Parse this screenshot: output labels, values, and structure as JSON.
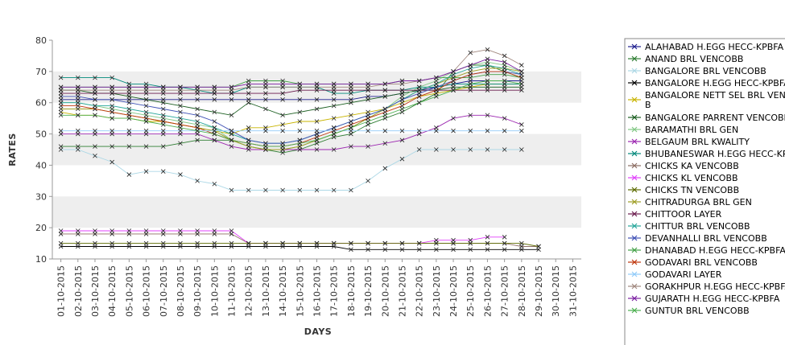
{
  "chart_data": {
    "type": "line",
    "xlabel": "DAYS",
    "ylabel": "RATES",
    "ylim": [
      10,
      80
    ],
    "yticks": [
      "10",
      "20",
      "30",
      "40",
      "50",
      "60",
      "70",
      "80"
    ],
    "grid": "alternating horizontal bands",
    "legend_placement": "right",
    "categories": [
      "01-10-2015",
      "02-10-2015",
      "03-10-2015",
      "04-10-2015",
      "05-10-2015",
      "06-10-2015",
      "07-10-2015",
      "08-10-2015",
      "09-10-2015",
      "10-10-2015",
      "11-10-2015",
      "12-10-2015",
      "13-10-2015",
      "14-10-2015",
      "15-10-2015",
      "16-10-2015",
      "17-10-2015",
      "18-10-2015",
      "19-10-2015",
      "20-10-2015",
      "21-10-2015",
      "22-10-2015",
      "23-10-2015",
      "24-10-2015",
      "25-10-2015",
      "26-10-2015",
      "27-10-2015",
      "28-10-2015",
      "29-10-2015",
      "30-10-2015",
      "31-10-2015"
    ],
    "series": [
      {
        "name": "ALAHABAD H.EGG HECC-KPBFA",
        "color": "#1f1f8f",
        "values": [
          61,
          61,
          61,
          61,
          61,
          61,
          61,
          61,
          61,
          61,
          61,
          61,
          61,
          61,
          61,
          61,
          61,
          61,
          62,
          62,
          63,
          64,
          65,
          66,
          67,
          67,
          67,
          67,
          null,
          null,
          null
        ]
      },
      {
        "name": "ANAND BRL VENCOBB",
        "color": "#2e7d32",
        "values": [
          46,
          46,
          46,
          46,
          46,
          46,
          46,
          47,
          48,
          48,
          48,
          46,
          45,
          44,
          45,
          47,
          49,
          50,
          53,
          55,
          57,
          60,
          63,
          70,
          72,
          72,
          70,
          68,
          null,
          null,
          null
        ]
      },
      {
        "name": "BANGALORE BRL VENCOBB",
        "color": "#add8e6",
        "values": [
          45,
          45,
          43,
          41,
          37,
          38,
          38,
          37,
          35,
          34,
          32,
          32,
          32,
          32,
          32,
          32,
          32,
          32,
          35,
          39,
          42,
          45,
          45,
          45,
          45,
          45,
          45,
          45,
          null,
          null,
          null
        ]
      },
      {
        "name": "BANGALORE H.EGG HECC-KPBFA",
        "color": "#000000",
        "values": [
          14,
          14,
          14,
          14,
          14,
          14,
          14,
          14,
          14,
          14,
          14,
          14,
          14,
          14,
          14,
          14,
          14,
          13,
          13,
          13,
          13,
          13,
          13,
          13,
          13,
          13,
          13,
          13,
          13,
          null,
          null
        ]
      },
      {
        "name": "BANGALORE NETT SEL BRL VENCOBB",
        "color": "#c8b400",
        "values": [
          57,
          56,
          56,
          55,
          55,
          54,
          54,
          53,
          52,
          51,
          50,
          52,
          52,
          53,
          54,
          54,
          55,
          56,
          57,
          58,
          60,
          62,
          63,
          64,
          65,
          66,
          66,
          66,
          null,
          null,
          null
        ]
      },
      {
        "name": "BANGALORE PARRENT VENCOBB",
        "color": "#1b5e20",
        "values": [
          64,
          64,
          63,
          63,
          62,
          61,
          60,
          59,
          58,
          57,
          56,
          60,
          58,
          56,
          57,
          58,
          59,
          60,
          61,
          62,
          63,
          64,
          64,
          65,
          65,
          65,
          65,
          65,
          null,
          null,
          null
        ]
      },
      {
        "name": "BARAMATHI BRL GEN",
        "color": "#81c784",
        "values": [
          60,
          60,
          59,
          58,
          57,
          56,
          55,
          54,
          53,
          52,
          48,
          46,
          45,
          45,
          46,
          48,
          50,
          52,
          55,
          58,
          62,
          65,
          67,
          70,
          72,
          73,
          72,
          70,
          null,
          null,
          null
        ]
      },
      {
        "name": "BELGAUM BRL KWALITY",
        "color": "#9c27b0",
        "values": [
          50,
          50,
          50,
          50,
          50,
          50,
          50,
          50,
          50,
          48,
          46,
          45,
          45,
          45,
          45,
          45,
          45,
          46,
          46,
          47,
          48,
          50,
          52,
          55,
          56,
          56,
          55,
          53,
          null,
          null,
          null
        ]
      },
      {
        "name": "BHUBANESWAR H.EGG HECC-KPBFA",
        "color": "#00897b",
        "values": [
          68,
          68,
          68,
          68,
          66,
          66,
          65,
          65,
          64,
          63,
          63,
          65,
          65,
          65,
          65,
          65,
          63,
          63,
          64,
          64,
          64,
          65,
          65,
          66,
          66,
          66,
          66,
          66,
          null,
          null,
          null
        ]
      },
      {
        "name": "CHICKS KA VENCOBB",
        "color": "#8d6e63",
        "values": [
          18,
          18,
          18,
          18,
          18,
          18,
          18,
          18,
          18,
          18,
          18,
          15,
          15,
          15,
          15,
          15,
          15,
          15,
          15,
          15,
          15,
          15,
          15,
          15,
          15,
          15,
          15,
          14,
          14,
          null,
          null
        ]
      },
      {
        "name": "CHICKS KL VENCOBB",
        "color": "#e040fb",
        "values": [
          19,
          19,
          19,
          19,
          19,
          19,
          19,
          19,
          19,
          19,
          19,
          15,
          15,
          15,
          15,
          15,
          15,
          15,
          15,
          15,
          15,
          15,
          16,
          16,
          16,
          17,
          17,
          null,
          null,
          null,
          null
        ]
      },
      {
        "name": "CHICKS TN VENCOBB",
        "color": "#5d6b00",
        "values": [
          15,
          15,
          15,
          15,
          15,
          15,
          15,
          15,
          15,
          15,
          15,
          15,
          15,
          15,
          15,
          15,
          15,
          15,
          15,
          15,
          15,
          15,
          15,
          15,
          15,
          15,
          15,
          15,
          14,
          null,
          null
        ]
      },
      {
        "name": "CHITRADURGA BRL GEN",
        "color": "#9e9d24",
        "values": [
          58,
          58,
          58,
          57,
          56,
          55,
          54,
          53,
          52,
          51,
          48,
          46,
          45,
          45,
          46,
          48,
          50,
          52,
          55,
          58,
          61,
          64,
          66,
          68,
          70,
          71,
          71,
          70,
          null,
          null,
          null
        ]
      },
      {
        "name": "CHITTOOR LAYER",
        "color": "#6a1b4d",
        "values": [
          63,
          63,
          63,
          63,
          63,
          63,
          63,
          63,
          63,
          63,
          63,
          63,
          63,
          63,
          64,
          64,
          64,
          64,
          64,
          64,
          64,
          64,
          64,
          64,
          64,
          64,
          64,
          64,
          null,
          null,
          null
        ]
      },
      {
        "name": "CHITTUR BRL VENCOBB",
        "color": "#26a69a",
        "values": [
          60,
          60,
          59,
          59,
          58,
          57,
          56,
          55,
          54,
          52,
          50,
          48,
          47,
          47,
          48,
          50,
          52,
          54,
          56,
          58,
          61,
          64,
          66,
          69,
          71,
          72,
          71,
          69,
          null,
          null,
          null
        ]
      },
      {
        "name": "DEVANHALLI BRL VENCOBB",
        "color": "#3f51b5",
        "values": [
          62,
          62,
          61,
          61,
          60,
          59,
          58,
          57,
          56,
          54,
          51,
          48,
          47,
          47,
          48,
          50,
          52,
          54,
          56,
          58,
          61,
          63,
          65,
          67,
          69,
          70,
          70,
          69,
          null,
          null,
          null
        ]
      },
      {
        "name": "DHANABAD H.EGG HECC-KPBFA",
        "color": "#43a047",
        "values": [
          65,
          65,
          65,
          65,
          65,
          65,
          65,
          65,
          65,
          65,
          65,
          67,
          67,
          67,
          66,
          66,
          66,
          66,
          66,
          66,
          67,
          67,
          68,
          68,
          68,
          69,
          69,
          68,
          null,
          null,
          null
        ]
      },
      {
        "name": "GODAVARI BRL VENCOBB",
        "color": "#bf360c",
        "values": [
          59,
          59,
          58,
          57,
          56,
          55,
          54,
          53,
          52,
          50,
          48,
          47,
          46,
          46,
          47,
          49,
          51,
          53,
          55,
          57,
          59,
          62,
          64,
          67,
          69,
          70,
          70,
          68,
          null,
          null,
          null
        ]
      },
      {
        "name": "GODAVARI LAYER",
        "color": "#90caf9",
        "values": [
          51,
          51,
          51,
          51,
          51,
          51,
          51,
          51,
          51,
          51,
          51,
          51,
          51,
          51,
          51,
          51,
          51,
          51,
          51,
          51,
          51,
          51,
          51,
          51,
          51,
          51,
          51,
          51,
          null,
          null,
          null
        ]
      },
      {
        "name": "GORAKHPUR H.EGG HECC-KPBFA",
        "color": "#a1887f",
        "values": [
          64,
          64,
          64,
          64,
          64,
          64,
          64,
          64,
          64,
          64,
          64,
          65,
          65,
          65,
          65,
          65,
          65,
          65,
          65,
          66,
          66,
          67,
          68,
          70,
          76,
          77,
          75,
          72,
          null,
          null,
          null
        ]
      },
      {
        "name": "GUJARATH H.EGG HECC-KPBFA",
        "color": "#7b1fa2",
        "values": [
          65,
          65,
          65,
          65,
          65,
          65,
          65,
          65,
          65,
          65,
          65,
          66,
          66,
          66,
          66,
          66,
          66,
          66,
          66,
          66,
          67,
          67,
          68,
          70,
          72,
          74,
          73,
          70,
          null,
          null,
          null
        ]
      },
      {
        "name": "GUNTUR BRL VENCOBB",
        "color": "#4caf50",
        "values": [
          56,
          56,
          56,
          55,
          55,
          54,
          53,
          52,
          51,
          50,
          48,
          47,
          46,
          46,
          47,
          48,
          50,
          52,
          54,
          56,
          58,
          60,
          62,
          64,
          66,
          67,
          67,
          66,
          null,
          null,
          null
        ]
      }
    ]
  }
}
